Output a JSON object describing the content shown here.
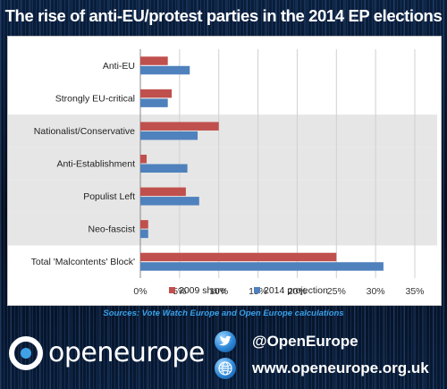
{
  "title": "The rise of anti-EU/protest parties in the 2014 EP elections",
  "chart_data": {
    "type": "bar",
    "orientation": "horizontal",
    "categories": [
      "Anti-EU",
      "Strongly EU-critical",
      "Nationalist/Conservative",
      "Anti-Establishment",
      "Populist Left",
      "Neo-fascist",
      "Total 'Malcontents' Block'"
    ],
    "highlighted_categories": [
      "Nationalist/Conservative",
      "Anti-Establishment",
      "Populist Left",
      "Neo-fascist"
    ],
    "series": [
      {
        "name": "2009 share",
        "color": "#c0504d",
        "values": [
          3.5,
          4.0,
          10.0,
          0.8,
          5.8,
          1.0,
          25.0
        ]
      },
      {
        "name": "2014 projection",
        "color": "#4f81bd",
        "values": [
          6.3,
          3.5,
          7.3,
          6.0,
          7.5,
          1.0,
          31.0
        ]
      }
    ],
    "xlim": [
      0,
      35
    ],
    "xticks": [
      "0%",
      "5%",
      "10%",
      "15%",
      "20%",
      "25%",
      "30%",
      "35%"
    ],
    "grid": true,
    "legend": "bottom"
  },
  "sources": "Sources: Vote Watch Europe and Open Europe calculations",
  "branding": {
    "logo_icon": "open-europe-logo-icon",
    "logo_text": "openeurope",
    "twitter_icon": "twitter-bird-icon",
    "twitter_handle": "@OpenEurope",
    "web_icon": "globe-icon",
    "website": "www.openeurope.org.uk",
    "accent_color": "#3fa2e6"
  }
}
